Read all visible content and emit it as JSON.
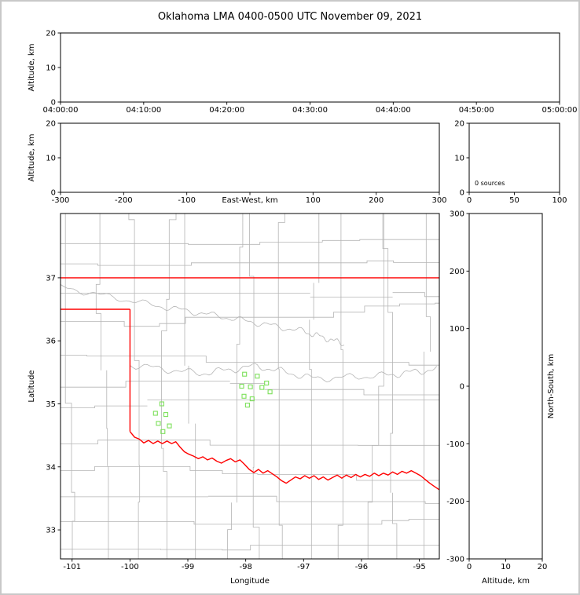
{
  "title": "Oklahoma LMA 0400-0500 UTC November 09, 2021",
  "colors": {
    "state_border": "#ff0000",
    "county_lines": "#b5b5b5",
    "stations": "#7ce05a",
    "axes": "#000000",
    "background": "#ffffff",
    "frame": "#c8c8c8"
  },
  "chart_data": {
    "type": "scatter",
    "title": "Oklahoma LMA 0400-0500 UTC November 09, 2021",
    "panels": {
      "time_height": {
        "ylabel": "Altitude, km",
        "ylim": [
          0,
          20
        ],
        "yticks": [
          0,
          10,
          20
        ],
        "xtick_labels": [
          "04:00:00",
          "04:10:00",
          "04:20:00",
          "04:30:00",
          "04:40:00",
          "04:50:00",
          "05:00:00"
        ],
        "points": []
      },
      "east_west_height": {
        "xlabel": "East-West, km",
        "ylabel": "Altitude, km",
        "xlim": [
          -300,
          300
        ],
        "ylim": [
          0,
          20
        ],
        "xticks": [
          -300,
          -200,
          -100,
          0,
          100,
          200,
          300
        ],
        "xtick_labels": [
          "-300",
          "-200",
          "-100",
          "",
          "100",
          "200",
          "300"
        ],
        "yticks": [
          0,
          10,
          20
        ],
        "points": []
      },
      "altitude_histogram": {
        "xlim": [
          0,
          100
        ],
        "ylim": [
          0,
          20
        ],
        "xticks": [
          0,
          50,
          100
        ],
        "yticks": [
          0,
          10,
          20
        ],
        "annotation": "0 sources",
        "points": []
      },
      "map": {
        "xlabel": "Longitude",
        "ylabel": "Latitude",
        "xlim": [
          -101.2,
          -94.655
        ],
        "ylim": [
          32.54,
          38.02
        ],
        "xticks": [
          -101,
          -100,
          -99,
          -98,
          -97,
          -96,
          -95
        ],
        "yticks": [
          33,
          34,
          35,
          36,
          37
        ],
        "points": []
      },
      "north_south_height": {
        "xlabel": "Altitude, km",
        "ylabel": "North-South, km",
        "xlim": [
          0,
          20
        ],
        "ylim": [
          -300,
          300
        ],
        "xticks": [
          0,
          10,
          20
        ],
        "yticks": [
          -300,
          -200,
          -100,
          0,
          100,
          200,
          300
        ],
        "points": []
      }
    },
    "stations": [
      {
        "lon": -98.02,
        "lat": 35.47
      },
      {
        "lon": -97.8,
        "lat": 35.44
      },
      {
        "lon": -98.07,
        "lat": 35.28
      },
      {
        "lon": -97.92,
        "lat": 35.27
      },
      {
        "lon": -97.72,
        "lat": 35.26
      },
      {
        "lon": -97.64,
        "lat": 35.33
      },
      {
        "lon": -97.58,
        "lat": 35.19
      },
      {
        "lon": -98.03,
        "lat": 35.12
      },
      {
        "lon": -97.89,
        "lat": 35.08
      },
      {
        "lon": -97.97,
        "lat": 34.98
      },
      {
        "lon": -99.45,
        "lat": 35.0
      },
      {
        "lon": -99.56,
        "lat": 34.85
      },
      {
        "lon": -99.38,
        "lat": 34.83
      },
      {
        "lon": -99.51,
        "lat": 34.69
      },
      {
        "lon": -99.32,
        "lat": 34.65
      },
      {
        "lon": -99.43,
        "lat": 34.56
      }
    ],
    "state_border": {
      "north": [
        [
          -101.2,
          37.0
        ],
        [
          -94.655,
          37.0
        ]
      ],
      "panhandle_south": [
        [
          -101.2,
          36.5
        ],
        [
          -100.0,
          36.5
        ]
      ],
      "west": [
        [
          -100.0,
          36.5
        ],
        [
          -100.0,
          34.56
        ]
      ],
      "red_river": [
        [
          -100.0,
          34.56
        ],
        [
          -99.92,
          34.47
        ],
        [
          -99.84,
          34.44
        ],
        [
          -99.76,
          34.38
        ],
        [
          -99.68,
          34.42
        ],
        [
          -99.6,
          34.37
        ],
        [
          -99.52,
          34.41
        ],
        [
          -99.44,
          34.37
        ],
        [
          -99.36,
          34.41
        ],
        [
          -99.28,
          34.37
        ],
        [
          -99.21,
          34.4
        ],
        [
          -99.14,
          34.32
        ],
        [
          -99.06,
          34.24
        ],
        [
          -98.98,
          34.2
        ],
        [
          -98.9,
          34.17
        ],
        [
          -98.82,
          34.13
        ],
        [
          -98.74,
          34.16
        ],
        [
          -98.66,
          34.11
        ],
        [
          -98.58,
          34.14
        ],
        [
          -98.5,
          34.09
        ],
        [
          -98.42,
          34.06
        ],
        [
          -98.34,
          34.1
        ],
        [
          -98.26,
          34.13
        ],
        [
          -98.18,
          34.08
        ],
        [
          -98.1,
          34.11
        ],
        [
          -98.02,
          34.04
        ],
        [
          -97.94,
          33.96
        ],
        [
          -97.86,
          33.91
        ],
        [
          -97.78,
          33.96
        ],
        [
          -97.7,
          33.9
        ],
        [
          -97.62,
          33.94
        ],
        [
          -97.54,
          33.89
        ],
        [
          -97.46,
          33.84
        ],
        [
          -97.38,
          33.78
        ],
        [
          -97.3,
          33.74
        ],
        [
          -97.22,
          33.79
        ],
        [
          -97.14,
          33.84
        ],
        [
          -97.06,
          33.81
        ],
        [
          -96.98,
          33.86
        ],
        [
          -96.9,
          33.82
        ],
        [
          -96.82,
          33.86
        ],
        [
          -96.74,
          33.8
        ],
        [
          -96.66,
          33.84
        ],
        [
          -96.58,
          33.79
        ],
        [
          -96.5,
          33.83
        ],
        [
          -96.42,
          33.87
        ],
        [
          -96.34,
          33.82
        ],
        [
          -96.26,
          33.87
        ],
        [
          -96.18,
          33.83
        ],
        [
          -96.1,
          33.88
        ],
        [
          -96.02,
          33.84
        ],
        [
          -95.94,
          33.88
        ],
        [
          -95.86,
          33.85
        ],
        [
          -95.78,
          33.9
        ],
        [
          -95.7,
          33.86
        ],
        [
          -95.62,
          33.9
        ],
        [
          -95.54,
          33.87
        ],
        [
          -95.46,
          33.92
        ],
        [
          -95.38,
          33.88
        ],
        [
          -95.3,
          33.93
        ],
        [
          -95.22,
          33.9
        ],
        [
          -95.14,
          33.94
        ],
        [
          -95.06,
          33.9
        ],
        [
          -94.98,
          33.86
        ],
        [
          -94.9,
          33.8
        ],
        [
          -94.82,
          33.74
        ],
        [
          -94.74,
          33.69
        ],
        [
          -94.66,
          33.64
        ]
      ]
    }
  }
}
